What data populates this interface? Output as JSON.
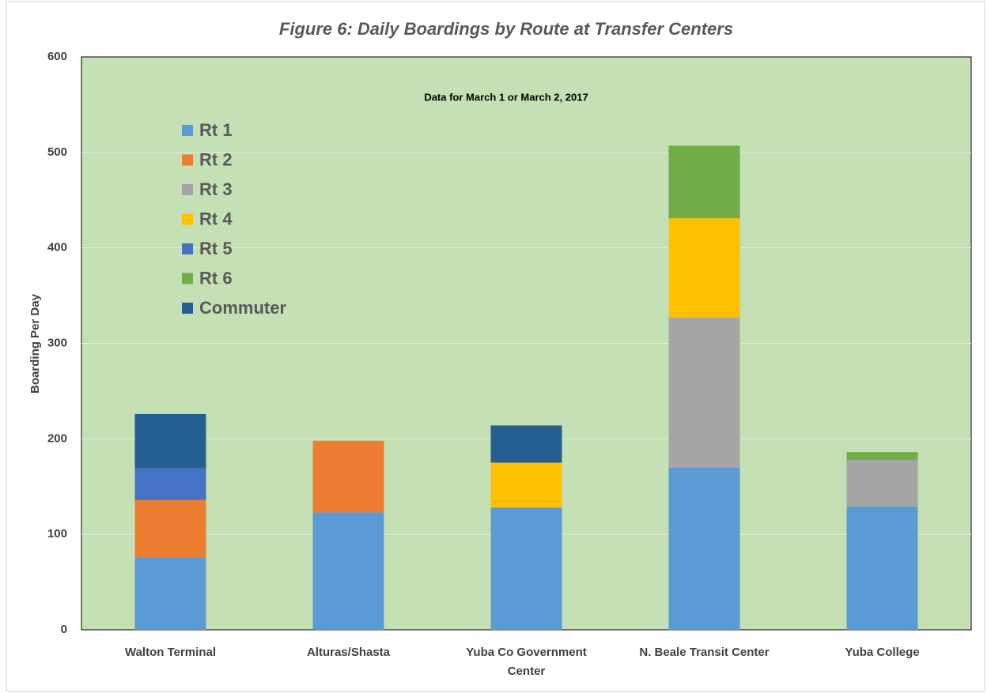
{
  "chart_data": {
    "type": "stacked_bar",
    "title": "Figure 6: Daily Boardings by Route at Transfer Centers",
    "subtitle": "Data for March 1 or March 2, 2017",
    "y_label": "Boarding Per Day",
    "categories": [
      "Walton Terminal",
      "Alturas/Shasta",
      "Yuba Co Government Center",
      "N. Beale Transit Center",
      "Yuba College"
    ],
    "series": [
      {
        "name": "Rt 1",
        "color": "#5b9bd5",
        "values": [
          76,
          123,
          128,
          170,
          129
        ]
      },
      {
        "name": "Rt 2",
        "color": "#ed7d31",
        "values": [
          60,
          75,
          null,
          null,
          null
        ]
      },
      {
        "name": "Rt 3",
        "color": "#a5a5a5",
        "values": [
          null,
          null,
          null,
          157,
          49
        ]
      },
      {
        "name": "Rt 4",
        "color": "#ffc000",
        "values": [
          null,
          null,
          47,
          104,
          null
        ]
      },
      {
        "name": "Rt 5",
        "color": "#4472c4",
        "values": [
          33,
          null,
          null,
          null,
          null
        ]
      },
      {
        "name": "Rt 6",
        "color": "#70ad47",
        "values": [
          null,
          null,
          null,
          76,
          8
        ]
      },
      {
        "name": "Commuter",
        "color": "#255e91",
        "values": [
          57,
          null,
          39,
          null,
          null
        ]
      }
    ],
    "ylim": [
      0,
      600
    ],
    "yticks": [
      0,
      100,
      200,
      300,
      400,
      500,
      600
    ],
    "grid": true,
    "legend": "upper left",
    "plot_background": "#c5e0b4"
  }
}
